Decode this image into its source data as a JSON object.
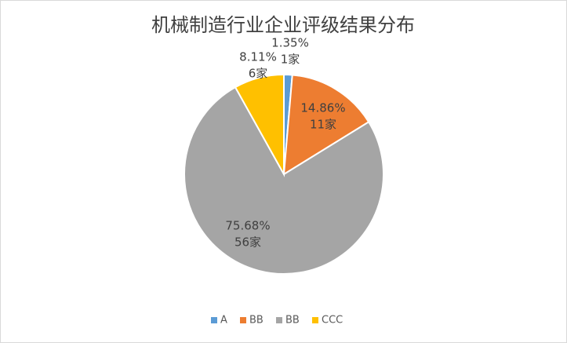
{
  "chart_data": {
    "type": "pie",
    "title": "机械制造行业企业评级结果分布",
    "categories": [
      "A",
      "BB",
      "BB",
      "CCC"
    ],
    "values": [
      1.35,
      14.86,
      75.68,
      8.11
    ],
    "value_labels": [
      "1.35%",
      "14.86%",
      "75.68%",
      "8.11%"
    ],
    "count_labels": [
      "1家",
      "11家",
      "56家",
      "6家"
    ],
    "colors": [
      "#5b9bd5",
      "#ed7d31",
      "#a5a5a5",
      "#ffc000"
    ],
    "legend": "bottom"
  }
}
